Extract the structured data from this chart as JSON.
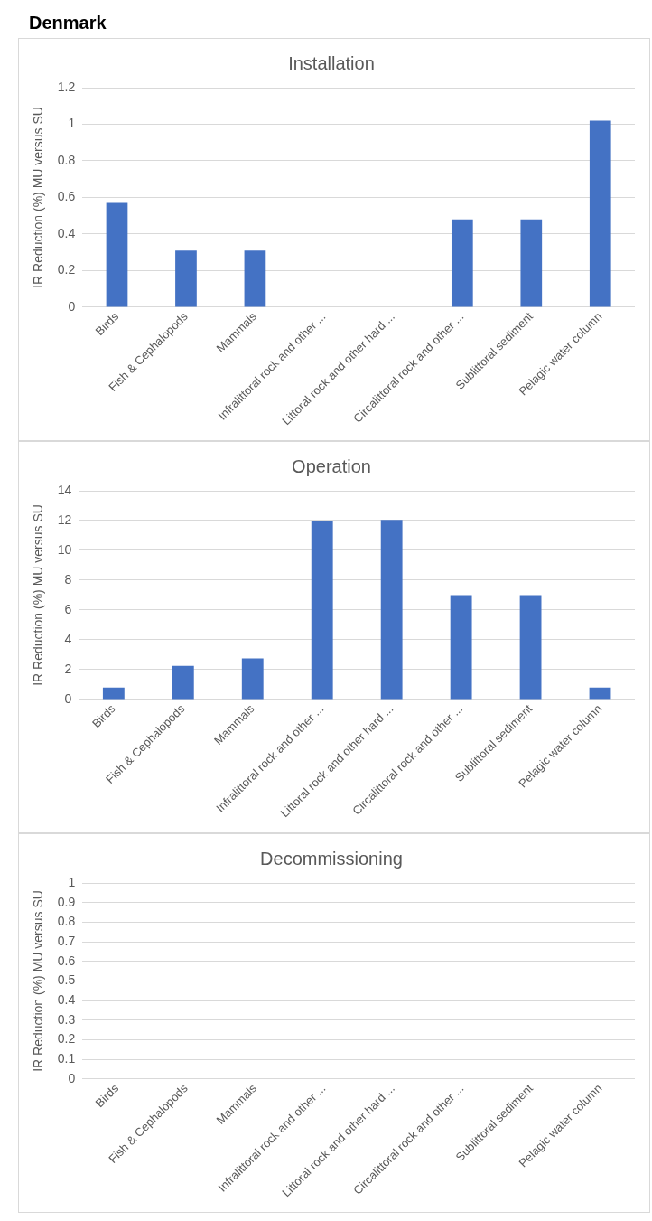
{
  "chart_data": [
    {
      "type": "bar",
      "title": "Installation",
      "ylabel": "IR Reduction (%) MU versus SU",
      "annotations": [
        "Denmark"
      ],
      "categories": [
        "Birds",
        "Fish & Cephalopods",
        "Mammals",
        "Infralittoral rock and other ...",
        "Littoral rock and other hard ...",
        "Circalittoral rock and other ...",
        "Sublittoral sediment",
        "Pelagic water column"
      ],
      "values": [
        0.57,
        0.31,
        0.31,
        0,
        0,
        0.48,
        0.48,
        1.02
      ],
      "color": "#4472c4",
      "ylim": [
        0,
        1.2
      ],
      "yticks": [
        0,
        {
          "value": 0.2,
          "label": "0.2"
        },
        {
          "value": 0.4,
          "label": "0.4"
        },
        {
          "value": 0.6,
          "label": "0.6"
        },
        {
          "value": 0.8,
          "label": "0.8"
        },
        1,
        {
          "value": 1.2,
          "label": "1.2"
        }
      ],
      "grid": "y"
    },
    {
      "type": "bar",
      "title": "Operation",
      "ylabel": "IR Reduction (%) MU versus SU",
      "categories": [
        "Birds",
        "Fish & Cephalopods",
        "Mammals",
        "Infralittoral rock and other ...",
        "Littoral rock and other hard ...",
        "Circalittoral rock and other ...",
        "Sublittoral sediment",
        "Pelagic water column"
      ],
      "values": [
        0.8,
        2.25,
        2.75,
        12,
        12.05,
        7,
        7,
        0.8
      ],
      "color": "#4472c4",
      "ylim": [
        0,
        14
      ],
      "yticks": [
        0,
        2,
        4,
        6,
        8,
        10,
        12,
        14
      ],
      "grid": "y"
    },
    {
      "type": "bar",
      "title": "Decommissioning",
      "ylabel": "IR Reduction (%) MU versus SU",
      "categories": [
        "Birds",
        "Fish & Cephalopods",
        "Mammals",
        "Infralittoral rock and other ...",
        "Littoral rock and other hard ...",
        "Circalittoral rock and other ...",
        "Sublittoral sediment",
        "Pelagic water column"
      ],
      "values": [
        0,
        0,
        0,
        0,
        0,
        0,
        0,
        0
      ],
      "color": "#4472c4",
      "ylim": [
        0,
        1
      ],
      "yticks": [
        0,
        {
          "value": 0.1,
          "label": "0.1"
        },
        {
          "value": 0.2,
          "label": "0.2"
        },
        {
          "value": 0.3,
          "label": "0.3"
        },
        {
          "value": 0.4,
          "label": "0.4"
        },
        {
          "value": 0.5,
          "label": "0.5"
        },
        {
          "value": 0.6,
          "label": "0.6"
        },
        {
          "value": 0.7,
          "label": "0.7"
        },
        {
          "value": 0.8,
          "label": "0.8"
        },
        {
          "value": 0.9,
          "label": "0.9"
        },
        1
      ],
      "grid": "y"
    }
  ]
}
